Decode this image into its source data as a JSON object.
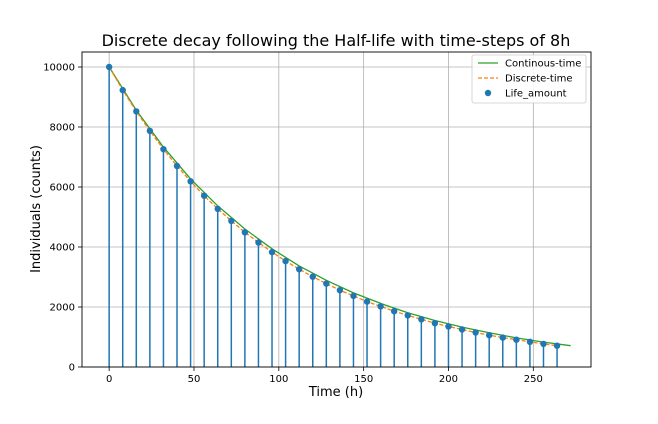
{
  "chart_data": {
    "type": "line",
    "title": "Discrete decay following the Half-life with time-steps of 8h",
    "xlabel": "Time (h)",
    "ylabel": "Individuals (counts)",
    "xlim": [
      -16,
      284
    ],
    "ylim": [
      0,
      10500
    ],
    "xticks": [
      0,
      50,
      100,
      150,
      200,
      250
    ],
    "yticks": [
      0,
      2000,
      4000,
      6000,
      8000,
      10000
    ],
    "xtick_labels": [
      "0",
      "50",
      "100",
      "150",
      "200",
      "250"
    ],
    "ytick_labels": [
      "0",
      "2000",
      "4000",
      "6000",
      "8000",
      "10000"
    ],
    "grid": true,
    "legend_position": "top-right",
    "continuous": {
      "name": "Continous-time",
      "color": "#2ca02c",
      "x": [
        0,
        16,
        32,
        48,
        64,
        80,
        96,
        112,
        128,
        144,
        160,
        176,
        192,
        208,
        224,
        240,
        256,
        272
      ],
      "y": [
        10000,
        8560,
        7330,
        6270,
        5370,
        4600,
        3940,
        3370,
        2890,
        2470,
        2120,
        1810,
        1550,
        1330,
        1140,
        970,
        830,
        710
      ]
    },
    "discrete": {
      "name": "Discrete-time",
      "color": "#ff7f0e",
      "x": [
        0,
        8,
        16,
        24,
        32,
        40,
        48,
        56,
        64,
        72,
        80,
        88,
        96,
        104,
        112,
        120,
        128,
        136,
        144,
        152,
        160,
        168,
        176,
        184,
        192,
        200,
        208,
        216,
        224,
        232,
        240,
        248,
        256,
        264
      ],
      "y": [
        10000,
        9230,
        8520,
        7870,
        7260,
        6700,
        6190,
        5710,
        5270,
        4870,
        4490,
        4150,
        3830,
        3530,
        3260,
        3010,
        2780,
        2560,
        2370,
        2180,
        2020,
        1860,
        1720,
        1590,
        1460,
        1350,
        1250,
        1150,
        1060,
        980,
        910,
        840,
        770,
        710
      ]
    },
    "samples": {
      "name": "Life_amount",
      "color": "#1f77b4",
      "x": [
        0,
        8,
        16,
        24,
        32,
        40,
        48,
        56,
        64,
        72,
        80,
        88,
        96,
        104,
        112,
        120,
        128,
        136,
        144,
        152,
        160,
        168,
        176,
        184,
        192,
        200,
        208,
        216,
        224,
        232,
        240,
        248,
        256,
        264
      ],
      "y": [
        10000,
        9230,
        8520,
        7870,
        7260,
        6700,
        6190,
        5710,
        5270,
        4870,
        4490,
        4150,
        3830,
        3530,
        3260,
        3010,
        2780,
        2560,
        2370,
        2180,
        2020,
        1860,
        1720,
        1590,
        1460,
        1350,
        1250,
        1150,
        1060,
        980,
        910,
        840,
        770,
        710
      ]
    },
    "colors": {
      "grid": "#b0b0b0",
      "axes": "#000000",
      "legend_border": "#cccccc"
    }
  }
}
